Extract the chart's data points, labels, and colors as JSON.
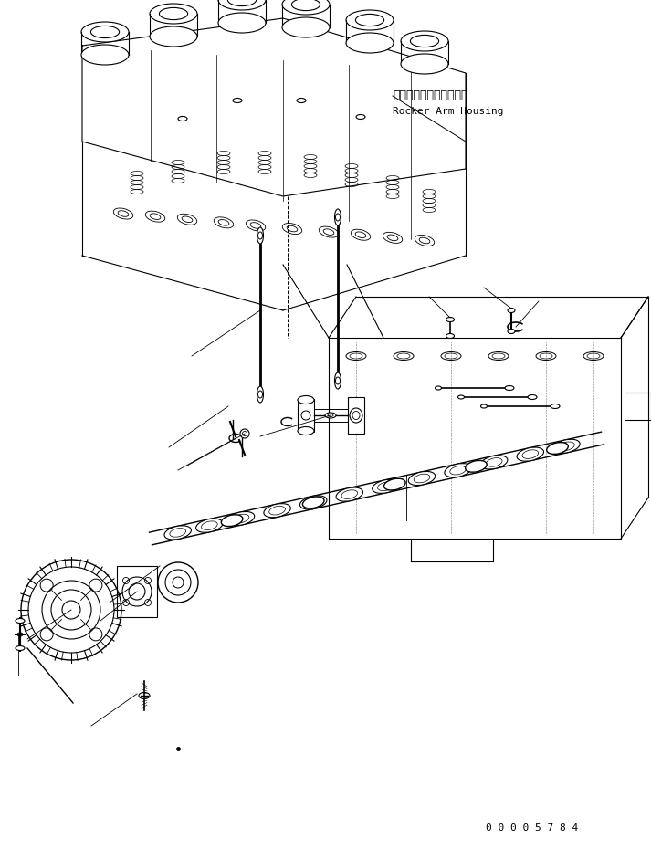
{
  "bg_color": "#ffffff",
  "line_color": "#000000",
  "title_jp": "ロッカアームハウジング",
  "title_en": "Rocker Arm Housing",
  "part_number": "0 0 0 0 5 7 8 4",
  "figsize": [
    7.13,
    9.3
  ],
  "dpi": 100
}
